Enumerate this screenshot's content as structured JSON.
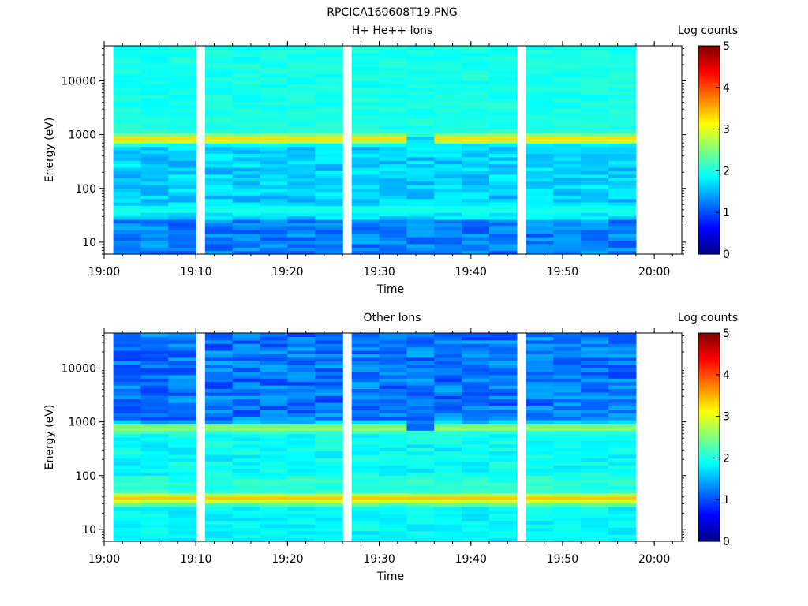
{
  "figure_title": "RPCICA160608T19.PNG",
  "chart_data": [
    {
      "type": "heatmap",
      "title": "H+ He++ Ions",
      "xlabel": "Time",
      "ylabel": "Energy (eV)",
      "ylog": true,
      "ylim": [
        6,
        45000
      ],
      "xlim": [
        "19:00",
        "20:03"
      ],
      "x_tick_labels": [
        "19:00",
        "19:10",
        "19:20",
        "19:30",
        "19:40",
        "19:50",
        "20:00"
      ],
      "y_tick_labels": [
        "10",
        "100",
        "1000",
        "10000"
      ],
      "colorbar": {
        "label": "Log counts",
        "range": [
          0,
          5
        ],
        "tick_labels": [
          "0",
          "1",
          "2",
          "3",
          "4",
          "5"
        ],
        "colormap": "jet"
      },
      "time_bins": [
        "19:01",
        "19:04",
        "19:07",
        "19:11",
        "19:14",
        "19:17",
        "19:20",
        "19:23",
        "19:27",
        "19:30",
        "19:33",
        "19:36",
        "19:39",
        "19:42",
        "19:46",
        "19:49",
        "19:52",
        "19:55"
      ],
      "gap": {
        "from": "19:33",
        "to": "19:36",
        "description": "band absent"
      },
      "features": [
        {
          "energy_eV": 850,
          "log_counts": 3.3,
          "note": "bright proton band"
        },
        {
          "energy_eV": 40,
          "log_counts": 2.0,
          "note": "weak low-energy band"
        },
        {
          "energy_eV": 2000,
          "log_counts": 2.0,
          "note": "background level above band"
        }
      ]
    },
    {
      "type": "heatmap",
      "title": "Other Ions",
      "xlabel": "Time",
      "ylabel": "Energy (eV)",
      "ylog": true,
      "ylim": [
        6,
        45000
      ],
      "xlim": [
        "19:00",
        "20:03"
      ],
      "x_tick_labels": [
        "19:00",
        "19:10",
        "19:20",
        "19:30",
        "19:40",
        "19:50",
        "20:00"
      ],
      "y_tick_labels": [
        "10",
        "100",
        "1000",
        "10000"
      ],
      "colorbar": {
        "label": "Log counts",
        "range": [
          0,
          5
        ],
        "tick_labels": [
          "0",
          "1",
          "2",
          "3",
          "4",
          "5"
        ],
        "colormap": "jet"
      },
      "time_bins": [
        "19:01",
        "19:04",
        "19:07",
        "19:11",
        "19:14",
        "19:17",
        "19:20",
        "19:23",
        "19:27",
        "19:30",
        "19:33",
        "19:36",
        "19:39",
        "19:42",
        "19:46",
        "19:49",
        "19:52",
        "19:55"
      ],
      "gap": {
        "from": "19:33",
        "to": "19:36",
        "description": "band absent"
      },
      "features": [
        {
          "energy_eV": 800,
          "log_counts": 2.7,
          "note": "band near 800 eV"
        },
        {
          "energy_eV": 38,
          "log_counts": 3.4,
          "note": "strong low-energy band"
        },
        {
          "energy_eV": 5000,
          "log_counts": 1.0,
          "note": "background level at high energies"
        }
      ]
    }
  ]
}
